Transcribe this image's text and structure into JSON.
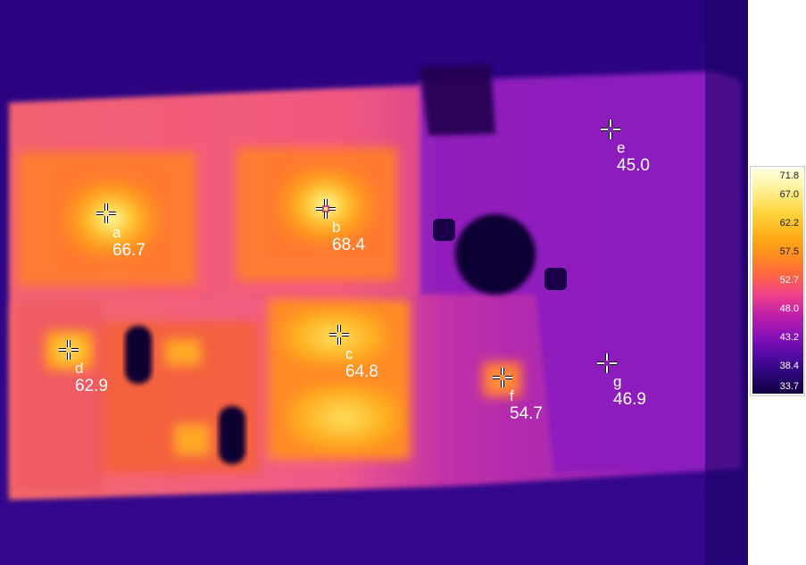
{
  "markers": [
    {
      "letter": "a",
      "value": "66.7",
      "color": "#ffe070"
    },
    {
      "letter": "b",
      "value": "68.4",
      "color": "#ffe880"
    },
    {
      "letter": "c",
      "value": "64.8",
      "color": "#ffd050"
    },
    {
      "letter": "d",
      "value": "62.9",
      "color": "#ffc840"
    },
    {
      "letter": "e",
      "value": "45.0",
      "color": "#9020c0"
    },
    {
      "letter": "f",
      "value": "54.7",
      "color": "#ff9030"
    },
    {
      "letter": "g",
      "value": "46.9",
      "color": "#a028b8"
    }
  ],
  "scale": {
    "ticks": [
      "71.8",
      "67.0",
      "62.2",
      "57.5",
      "52.7",
      "48.0",
      "43.2",
      "38.4",
      "33.7"
    ]
  },
  "colors": {
    "background": "#26037a",
    "board": "#e0489a",
    "hot": "#ffe880",
    "warm": "#ff8a20",
    "cool": "#8a20c0"
  }
}
